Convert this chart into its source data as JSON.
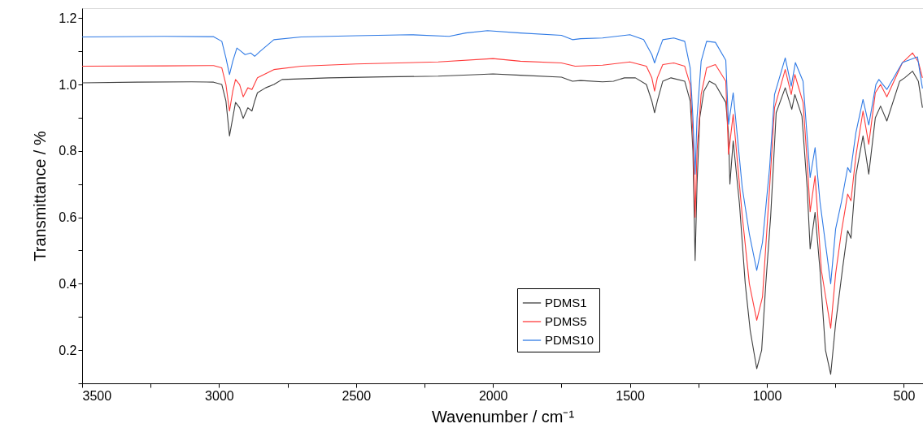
{
  "chart_data": {
    "type": "line",
    "xlabel": "Wavenumber / cm⁻¹",
    "ylabel": "Transmittance / %",
    "xlim": [
      3500,
      430
    ],
    "ylim": [
      0.1,
      1.23
    ],
    "xticks": [
      3500,
      {
        "value": 3250,
        "label": null
      },
      3000,
      {
        "value": 2750,
        "label": null
      },
      2500,
      {
        "value": 2250,
        "label": null
      },
      2000,
      {
        "value": 1750,
        "label": null
      },
      1500,
      {
        "value": 1250,
        "label": null
      },
      1000,
      {
        "value": 750,
        "label": null
      },
      500
    ],
    "yticks": [
      {
        "value": 0.1,
        "label": null
      },
      0.2,
      {
        "value": 0.3,
        "label": null
      },
      0.4,
      {
        "value": 0.5,
        "label": null
      },
      0.6,
      {
        "value": 0.7,
        "label": null
      },
      0.8,
      {
        "value": 0.9,
        "label": null
      },
      {
        "value": 1.0,
        "label": "1.0"
      },
      {
        "value": 1.1,
        "label": null
      },
      1.2
    ],
    "grid": false,
    "legend": "bottom right",
    "marker": "none",
    "line_style": "solid",
    "series": [
      {
        "name": "PDMS1",
        "color": "#404040",
        "x": [
          3500,
          3300,
          3100,
          3020,
          2990,
          2975,
          2962,
          2950,
          2940,
          2925,
          2912,
          2895,
          2880,
          2870,
          2860,
          2830,
          2800,
          2790,
          2770,
          2600,
          2400,
          2200,
          2050,
          2000,
          1900,
          1750,
          1710,
          1680,
          1600,
          1560,
          1520,
          1480,
          1440,
          1420,
          1410,
          1400,
          1380,
          1350,
          1300,
          1280,
          1270,
          1262,
          1255,
          1245,
          1230,
          1210,
          1188,
          1150,
          1140,
          1135,
          1123,
          1100,
          1079,
          1061,
          1037,
          1019,
          1004,
          986,
          966,
          933,
          909,
          898,
          872,
          853,
          842,
          824,
          806,
          786,
          767,
          749,
          723,
          705,
          693,
          675,
          649,
          628,
          604,
          585,
          562,
          515,
          497,
          468,
          447,
          432
        ],
        "values": [
          1.005,
          1.007,
          1.008,
          1.007,
          1.0,
          0.95,
          0.845,
          0.9,
          0.946,
          0.93,
          0.898,
          0.93,
          0.92,
          0.95,
          0.975,
          0.99,
          1.0,
          1.005,
          1.015,
          1.02,
          1.023,
          1.025,
          1.03,
          1.032,
          1.028,
          1.022,
          1.01,
          1.012,
          1.008,
          1.01,
          1.02,
          1.02,
          1.0,
          0.95,
          0.915,
          0.95,
          1.01,
          1.02,
          1.01,
          0.95,
          0.8,
          0.47,
          0.7,
          0.9,
          0.98,
          1.01,
          1.0,
          0.946,
          0.85,
          0.7,
          0.83,
          0.64,
          0.4,
          0.26,
          0.144,
          0.2,
          0.4,
          0.605,
          0.915,
          0.99,
          0.925,
          0.97,
          0.905,
          0.69,
          0.505,
          0.615,
          0.44,
          0.2,
          0.127,
          0.28,
          0.45,
          0.56,
          0.537,
          0.727,
          0.845,
          0.73,
          0.9,
          0.935,
          0.89,
          1.01,
          1.02,
          1.04,
          1.01,
          0.93
        ]
      },
      {
        "name": "PDMS5",
        "color": "#ff3b3b",
        "x": [
          3500,
          3200,
          3020,
          2990,
          2975,
          2962,
          2950,
          2940,
          2925,
          2912,
          2895,
          2880,
          2860,
          2800,
          2700,
          2500,
          2200,
          2000,
          1900,
          1750,
          1700,
          1600,
          1500,
          1440,
          1420,
          1410,
          1400,
          1380,
          1340,
          1300,
          1280,
          1270,
          1262,
          1255,
          1240,
          1220,
          1188,
          1150,
          1140,
          1123,
          1090,
          1064,
          1037,
          1016,
          990,
          972,
          933,
          911,
          898,
          868,
          853,
          842,
          824,
          801,
          767,
          749,
          728,
          705,
          693,
          675,
          649,
          628,
          604,
          585,
          562,
          505,
          468,
          447,
          432
        ],
        "values": [
          1.055,
          1.056,
          1.057,
          1.05,
          1.0,
          0.92,
          0.98,
          1.015,
          1.0,
          0.963,
          0.99,
          0.985,
          1.02,
          1.045,
          1.055,
          1.062,
          1.068,
          1.078,
          1.07,
          1.065,
          1.055,
          1.058,
          1.068,
          1.055,
          1.02,
          0.98,
          1.02,
          1.06,
          1.065,
          1.055,
          1.0,
          0.85,
          0.6,
          0.8,
          0.97,
          1.05,
          1.06,
          1.01,
          0.79,
          0.91,
          0.605,
          0.4,
          0.29,
          0.36,
          0.69,
          0.93,
          1.045,
          0.97,
          1.03,
          0.946,
          0.77,
          0.617,
          0.725,
          0.44,
          0.266,
          0.43,
          0.556,
          0.67,
          0.65,
          0.785,
          0.92,
          0.82,
          0.975,
          1.0,
          0.963,
          1.066,
          1.095,
          1.068,
          1.02
        ]
      },
      {
        "name": "PDMS10",
        "color": "#2f7ae5",
        "x": [
          3500,
          3200,
          3020,
          2990,
          2975,
          2962,
          2950,
          2935,
          2920,
          2905,
          2885,
          2870,
          2850,
          2800,
          2700,
          2500,
          2300,
          2160,
          2100,
          2020,
          1900,
          1750,
          1710,
          1680,
          1600,
          1500,
          1450,
          1420,
          1410,
          1400,
          1380,
          1340,
          1300,
          1280,
          1270,
          1262,
          1255,
          1240,
          1220,
          1188,
          1150,
          1140,
          1123,
          1090,
          1064,
          1037,
          1016,
          990,
          972,
          933,
          911,
          896,
          868,
          842,
          824,
          806,
          767,
          749,
          728,
          705,
          695,
          675,
          649,
          628,
          602,
          591,
          562,
          505,
          450,
          432
        ],
        "values": [
          1.143,
          1.145,
          1.144,
          1.13,
          1.08,
          1.03,
          1.07,
          1.11,
          1.1,
          1.09,
          1.095,
          1.085,
          1.1,
          1.135,
          1.143,
          1.147,
          1.15,
          1.145,
          1.155,
          1.162,
          1.155,
          1.148,
          1.135,
          1.138,
          1.14,
          1.15,
          1.135,
          1.09,
          1.065,
          1.09,
          1.135,
          1.14,
          1.13,
          1.05,
          0.9,
          0.73,
          0.9,
          1.07,
          1.13,
          1.127,
          1.073,
          0.88,
          0.975,
          0.69,
          0.55,
          0.44,
          0.525,
          0.75,
          0.97,
          1.08,
          0.995,
          1.066,
          1.01,
          0.72,
          0.81,
          0.646,
          0.4,
          0.565,
          0.646,
          0.75,
          0.735,
          0.855,
          0.955,
          0.878,
          1.0,
          1.015,
          0.985,
          1.066,
          1.083,
          0.988
        ]
      }
    ]
  }
}
